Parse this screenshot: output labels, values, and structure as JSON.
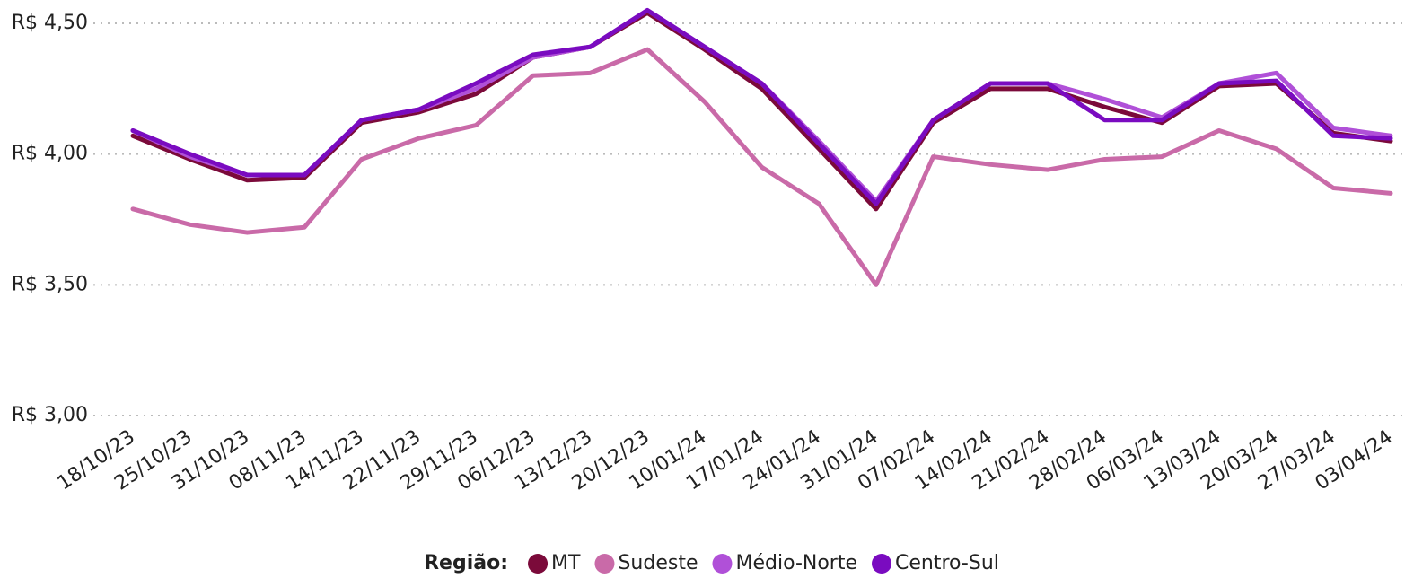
{
  "chart_data": {
    "type": "line",
    "categories": [
      "18/10/23",
      "25/10/23",
      "31/10/23",
      "08/11/23",
      "14/11/23",
      "22/11/23",
      "29/11/23",
      "06/12/23",
      "13/12/23",
      "20/12/23",
      "10/01/24",
      "17/01/24",
      "24/01/24",
      "31/01/24",
      "07/02/24",
      "14/02/24",
      "21/02/24",
      "28/02/24",
      "06/03/24",
      "13/03/24",
      "20/03/24",
      "27/03/24",
      "03/04/24"
    ],
    "series": [
      {
        "name": "MT",
        "color": "#7b0a3a",
        "values": [
          4.07,
          3.98,
          3.9,
          3.91,
          4.12,
          4.16,
          4.23,
          4.37,
          4.41,
          4.54,
          4.4,
          4.25,
          4.02,
          3.79,
          4.12,
          4.25,
          4.25,
          4.18,
          4.12,
          4.26,
          4.27,
          4.08,
          4.05
        ]
      },
      {
        "name": "Sudeste",
        "color": "#c96aa8",
        "values": [
          3.79,
          3.73,
          3.7,
          3.72,
          3.98,
          4.06,
          4.11,
          4.3,
          4.31,
          4.4,
          4.2,
          3.95,
          3.81,
          3.5,
          3.99,
          3.96,
          3.94,
          3.98,
          3.99,
          4.09,
          4.02,
          3.87,
          3.85
        ]
      },
      {
        "name": "Médio-Norte",
        "color": "#b050d8",
        "values": [
          4.09,
          3.99,
          3.92,
          3.92,
          4.13,
          4.17,
          4.25,
          4.37,
          4.41,
          4.55,
          4.41,
          4.27,
          4.05,
          3.82,
          4.13,
          4.27,
          4.27,
          4.21,
          4.14,
          4.27,
          4.31,
          4.1,
          4.07
        ]
      },
      {
        "name": "Centro-Sul",
        "color": "#7a0bc0",
        "values": [
          4.09,
          4.0,
          3.92,
          3.92,
          4.13,
          4.17,
          4.27,
          4.38,
          4.41,
          4.55,
          4.41,
          4.27,
          4.04,
          3.81,
          4.13,
          4.27,
          4.27,
          4.13,
          4.13,
          4.27,
          4.28,
          4.07,
          4.06
        ]
      }
    ],
    "legend_title": "Região:",
    "ylim": [
      3.0,
      4.5
    ],
    "yticks": [
      {
        "value": 3.0,
        "label": "R$ 3,00"
      },
      {
        "value": 3.5,
        "label": "R$ 3,50"
      },
      {
        "value": 4.0,
        "label": "R$ 4,00"
      },
      {
        "value": 4.5,
        "label": "R$ 4,50"
      }
    ],
    "grid": true,
    "legend_position": "bottom"
  }
}
